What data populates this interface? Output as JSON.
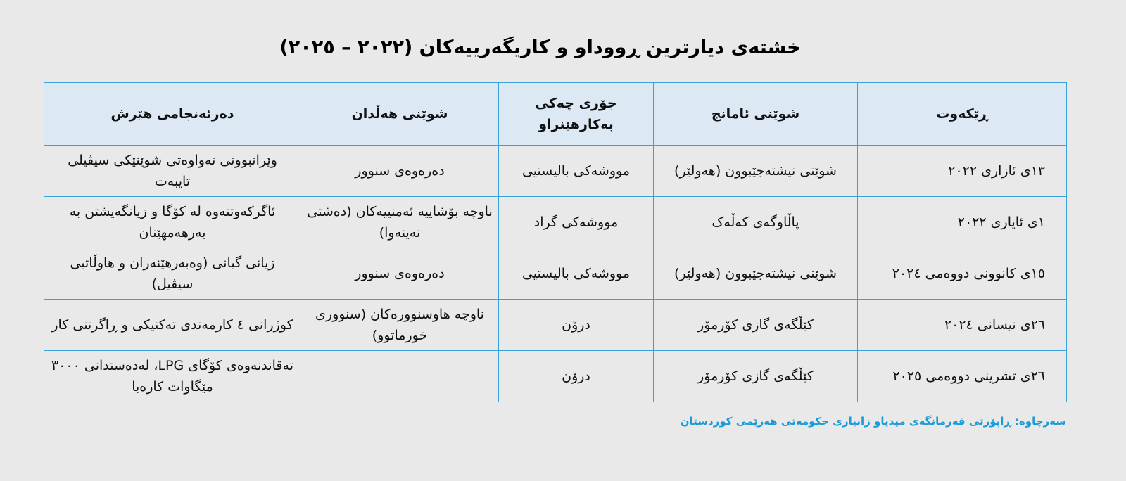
{
  "title": "خشتەی  دیارترین ڕووداو و کاریگەرییەکان (٢٠٢٢ – ٢٠٢٥)",
  "colors": {
    "border": "#3aa0d8",
    "header_bg": "#dce9f5",
    "caption": "#1a9ad6"
  },
  "table": {
    "headers": [
      "ڕێکەوت",
      "شوێنی ئامانج",
      "جۆری چەکی بەکارهێنراو",
      "شوێنی هەڵدان",
      "دەرئەنجامی هێرش"
    ],
    "rows": [
      [
        "١٣ی ئازاری ٢٠٢٢",
        "شوێنی نیشتەجێبوون (هەولێر)",
        "مووشەکی بالیستیی",
        "دەرەوەی سنوور",
        "وێرانبوونی تەواوەتی شوێنێکی سیڤیلی تایبەت"
      ],
      [
        "١ی ئایاری ٢٠٢٢",
        "پاڵاوگەی کەڵەک",
        "مووشەکی گراد",
        "ناوچە بۆشاییە ئەمنییەکان (دەشتی نەینەوا)",
        "ئاگرکەوتنەوە لە کۆگا و زیانگەیشتن بە بەرهەمهێنان"
      ],
      [
        "١٥ی کانوونی دووەمی ٢٠٢٤",
        "شوێنی نیشتەجێبوون (هەولێر)",
        "مووشەکی بالیستیی",
        "دەرەوەی سنوور",
        "زیانی گیانی (وەبەرهێنەران و هاوڵاتیی سیڤیل)"
      ],
      [
        "٢٦ی نیسانی ٢٠٢٤",
        "کێڵگەی گازی کۆرمۆر",
        "درۆن",
        "ناوچە هاوسنوورەکان (سنووری خورماتوو)",
        "کوژرانی ٤ کارمەندی تەکنیکی و ڕاگرتنی کار"
      ],
      [
        "٢٦ی تشرینی دووەمی ٢٠٢٥",
        "کێڵگەی گازی کۆرمۆر",
        "درۆن",
        "",
        "تەقاندنەوەی کۆگای LPG، لەدەستدانی ٣٠٠٠ مێگاوات کارەبا"
      ]
    ]
  },
  "caption": "سەرچاوە: ڕاپۆرتی فەرمانگەی میدیاو زانیاری حکومەتی هەرێمی کوردستان"
}
